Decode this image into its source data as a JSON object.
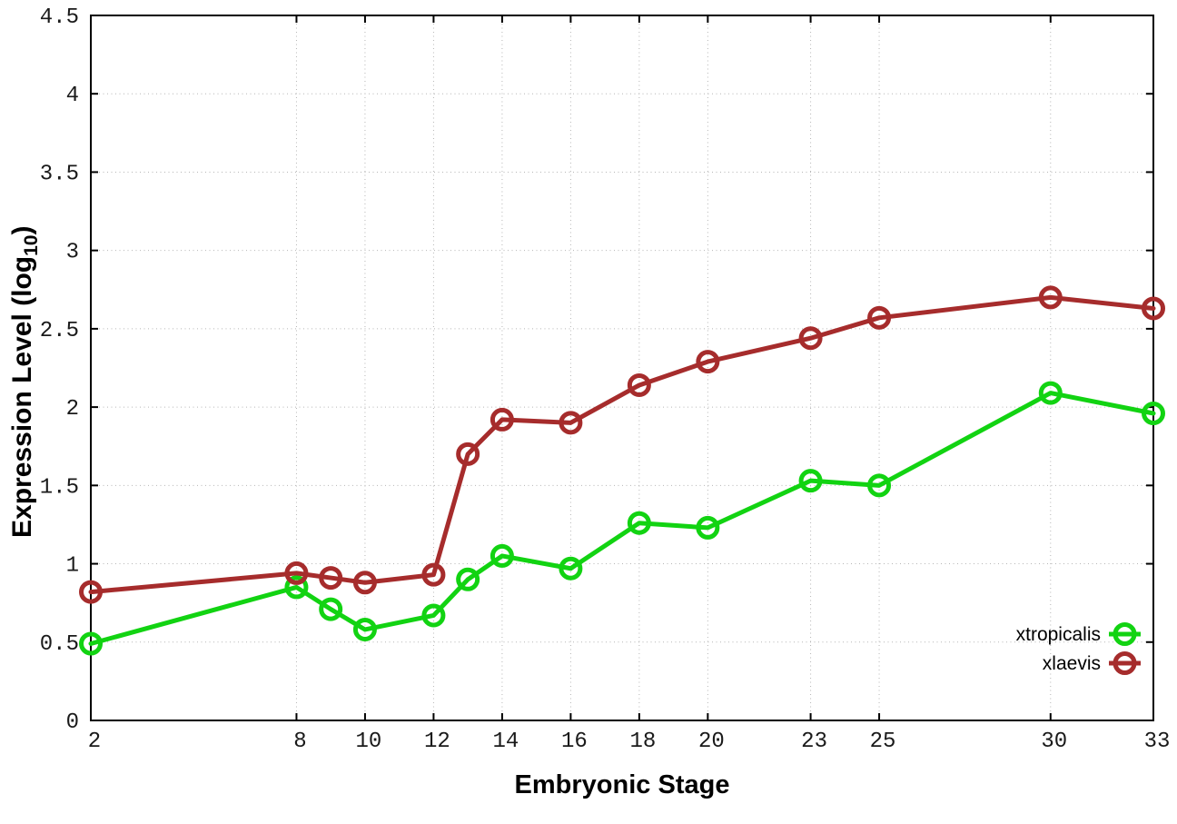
{
  "page": {
    "background": "#ffffff"
  },
  "axis_titles": {
    "x": "Embryonic Stage",
    "y_base": "Expression Level (log",
    "y_sub": "10",
    "y_close": ")"
  },
  "chart_data": {
    "type": "line",
    "title": "",
    "xlabel": "Embryonic Stage",
    "ylabel": "Expression Level (log10)",
    "xlim": [
      2,
      33
    ],
    "ylim": [
      0,
      4.5
    ],
    "xticks": [
      2,
      8,
      10,
      12,
      14,
      16,
      18,
      20,
      23,
      25,
      30,
      33
    ],
    "yticks": [
      0,
      0.5,
      1,
      1.5,
      2,
      2.5,
      3,
      3.5,
      4,
      4.5
    ],
    "ytick_labels": [
      "0",
      "0.5",
      "1",
      "1.5",
      "2",
      "2.5",
      "3",
      "3.5",
      "4",
      "4.5"
    ],
    "grid": true,
    "grid_color": "#b5b5b5",
    "legend": {
      "position": "inside-bottom-right",
      "items": [
        "xtropicalis",
        "xlaevis"
      ]
    },
    "x": [
      2,
      8,
      9,
      10,
      12,
      13,
      14,
      16,
      18,
      20,
      23,
      25,
      30,
      33
    ],
    "series": [
      {
        "name": "xtropicalis",
        "color": "#12d312",
        "marker": "open-circle",
        "values": [
          0.49,
          0.85,
          0.71,
          0.58,
          0.67,
          0.9,
          1.05,
          0.97,
          1.26,
          1.23,
          1.53,
          1.5,
          2.09,
          1.96
        ]
      },
      {
        "name": "xlaevis",
        "color": "#a62c2c",
        "marker": "open-circle",
        "values": [
          0.82,
          0.94,
          0.91,
          0.88,
          0.93,
          1.7,
          1.92,
          1.9,
          2.14,
          2.29,
          2.44,
          2.57,
          2.7,
          2.63
        ]
      }
    ]
  }
}
